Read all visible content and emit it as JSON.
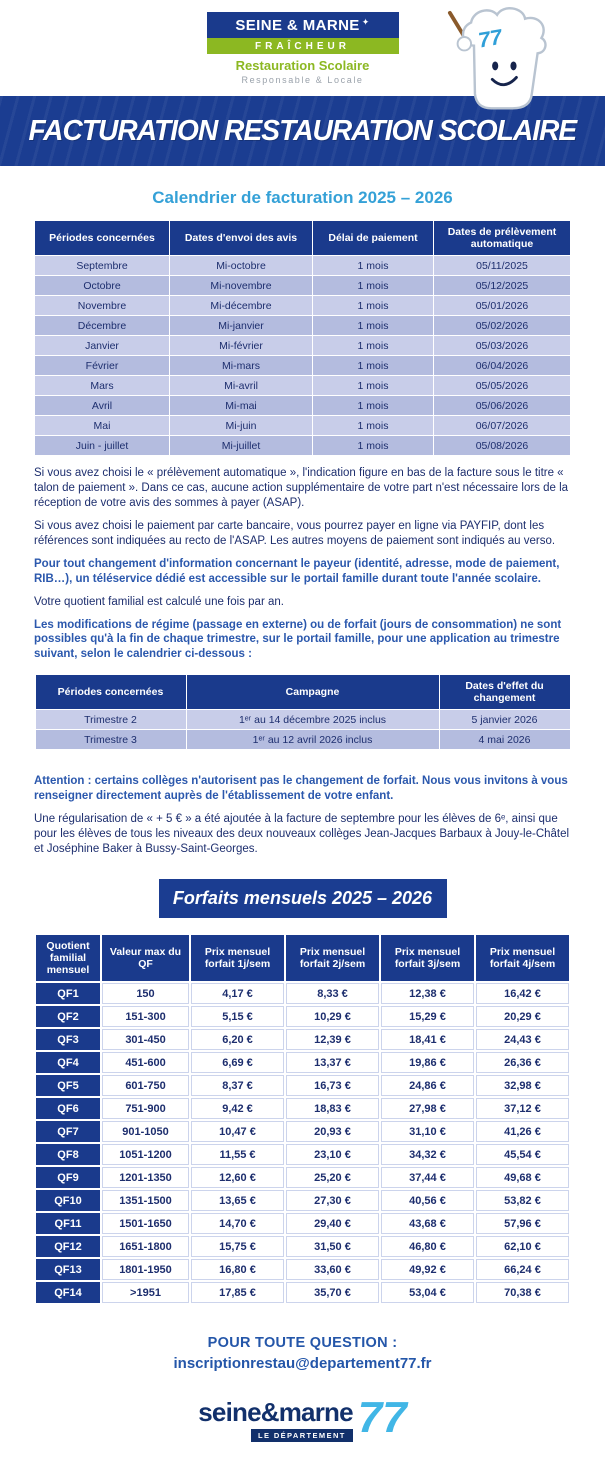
{
  "brand": {
    "name_line": "SEINE & MARNE",
    "sparkle": "✦",
    "band": "FRAÎCHEUR",
    "subtitle": "Restauration Scolaire",
    "tagline": "Responsable & Locale",
    "mascot_number": "77"
  },
  "banner": {
    "title": "FACTURATION RESTAURATION SCOLAIRE"
  },
  "calendar": {
    "title": "Calendrier de facturation 2025 – 2026",
    "headers": [
      "Périodes concernées",
      "Dates d'envoi des avis",
      "Délai de paiement",
      "Dates de prélèvement automatique"
    ],
    "rows": [
      [
        "Septembre",
        "Mi-octobre",
        "1 mois",
        "05/11/2025"
      ],
      [
        "Octobre",
        "Mi-novembre",
        "1 mois",
        "05/12/2025"
      ],
      [
        "Novembre",
        "Mi-décembre",
        "1 mois",
        "05/01/2026"
      ],
      [
        "Décembre",
        "Mi-janvier",
        "1 mois",
        "05/02/2026"
      ],
      [
        "Janvier",
        "Mi-février",
        "1 mois",
        "05/03/2026"
      ],
      [
        "Février",
        "Mi-mars",
        "1 mois",
        "06/04/2026"
      ],
      [
        "Mars",
        "Mi-avril",
        "1 mois",
        "05/05/2026"
      ],
      [
        "Avril",
        "Mi-mai",
        "1 mois",
        "05/06/2026"
      ],
      [
        "Mai",
        "Mi-juin",
        "1 mois",
        "06/07/2026"
      ],
      [
        "Juin - juillet",
        "Mi-juillet",
        "1 mois",
        "05/08/2026"
      ]
    ]
  },
  "notes": [
    {
      "text": "Si vous avez choisi le « prélèvement automatique », l'indication figure en bas de la facture sous le titre « talon de paiement ». Dans ce cas, aucune action supplémentaire de votre part n'est nécessaire lors de la réception de votre avis des sommes à payer (ASAP)."
    },
    {
      "text": "Si vous avez choisi le paiement par carte bancaire, vous pourrez payer en ligne via PAYFIP, dont les références sont indiquées au recto de l'ASAP. Les autres moyens de paiement sont indiqués au verso."
    },
    {
      "text": "Pour tout changement d'information concernant le payeur (identité, adresse, mode de paiement, RIB…), un téléservice dédié est accessible sur le portail famille durant toute l'année scolaire."
    },
    {
      "text": "Votre quotient familial est calculé une fois par an."
    },
    {
      "text": "Les modifications de régime (passage en externe) ou de forfait (jours de consommation) ne sont possibles qu'à la fin de chaque trimestre, sur le portail famille, pour une application au trimestre suivant, selon le calendrier ci-dessous :"
    },
    {
      "text": "Attention : certains collèges n'autorisent pas le changement de forfait. Nous vous invitons à vous renseigner directement auprès de l'établissement de votre enfant."
    },
    {
      "text": "Une régularisation de « + 5 € » a été ajoutée à la facture de septembre pour les élèves de 6ᵉ, ainsi que pour les élèves de tous les niveaux des deux nouveaux collèges Jean-Jacques Barbaux à Jouy-le-Châtel et Joséphine Baker à Bussy-Saint-Georges."
    }
  ],
  "trimesters": {
    "headers": [
      "Périodes concernées",
      "Campagne",
      "Dates d'effet du changement"
    ],
    "rows": [
      [
        "Trimestre 2",
        "1ᵉʳ au 14 décembre 2025 inclus",
        "5 janvier 2026"
      ],
      [
        "Trimestre 3",
        "1ᵉʳ au 12 avril 2026 inclus",
        "4 mai 2026"
      ]
    ]
  },
  "forfaits": {
    "title": "Forfaits mensuels 2025 – 2026",
    "headers": [
      "Quotient familial mensuel",
      "Valeur max du QF",
      "Prix mensuel forfait 1j/sem",
      "Prix mensuel forfait 2j/sem",
      "Prix mensuel forfait 3j/sem",
      "Prix mensuel forfait 4j/sem"
    ],
    "rows": [
      [
        "QF1",
        "150",
        "4,17 €",
        "8,33 €",
        "12,38 €",
        "16,42 €"
      ],
      [
        "QF2",
        "151-300",
        "5,15 €",
        "10,29 €",
        "15,29 €",
        "20,29 €"
      ],
      [
        "QF3",
        "301-450",
        "6,20 €",
        "12,39 €",
        "18,41 €",
        "24,43 €"
      ],
      [
        "QF4",
        "451-600",
        "6,69 €",
        "13,37 €",
        "19,86 €",
        "26,36 €"
      ],
      [
        "QF5",
        "601-750",
        "8,37 €",
        "16,73 €",
        "24,86 €",
        "32,98 €"
      ],
      [
        "QF6",
        "751-900",
        "9,42 €",
        "18,83 €",
        "27,98 €",
        "37,12 €"
      ],
      [
        "QF7",
        "901-1050",
        "10,47 €",
        "20,93 €",
        "31,10 €",
        "41,26 €"
      ],
      [
        "QF8",
        "1051-1200",
        "11,55 €",
        "23,10 €",
        "34,32 €",
        "45,54 €"
      ],
      [
        "QF9",
        "1201-1350",
        "12,60 €",
        "25,20 €",
        "37,44 €",
        "49,68 €"
      ],
      [
        "QF10",
        "1351-1500",
        "13,65 €",
        "27,30 €",
        "40,56 €",
        "53,82 €"
      ],
      [
        "QF11",
        "1501-1650",
        "14,70 €",
        "29,40 €",
        "43,68 €",
        "57,96 €"
      ],
      [
        "QF12",
        "1651-1800",
        "15,75 €",
        "31,50 €",
        "46,80 €",
        "62,10 €"
      ],
      [
        "QF13",
        "1801-1950",
        "16,80 €",
        "33,60 €",
        "49,92 €",
        "66,24 €"
      ],
      [
        "QF14",
        ">1951",
        "17,85 €",
        "35,70 €",
        "53,04 €",
        "70,38 €"
      ]
    ]
  },
  "footer": {
    "question_label": "POUR TOUTE QUESTION :",
    "email": "inscriptionrestau@departement77.fr",
    "logo_name": "seine&marne",
    "logo_dept": "LE DÉPARTEMENT",
    "logo_number": "77"
  },
  "colors": {
    "navy": "#1a3a8c",
    "banner_navy": "#1b3d91",
    "light_blue_title": "#35a1d7",
    "emphasis_blue": "#2b58ad",
    "green": "#8cb822",
    "row_light": "#c8cde9",
    "row_dark": "#b4bcdf",
    "cyan_77": "#41b6e6"
  }
}
